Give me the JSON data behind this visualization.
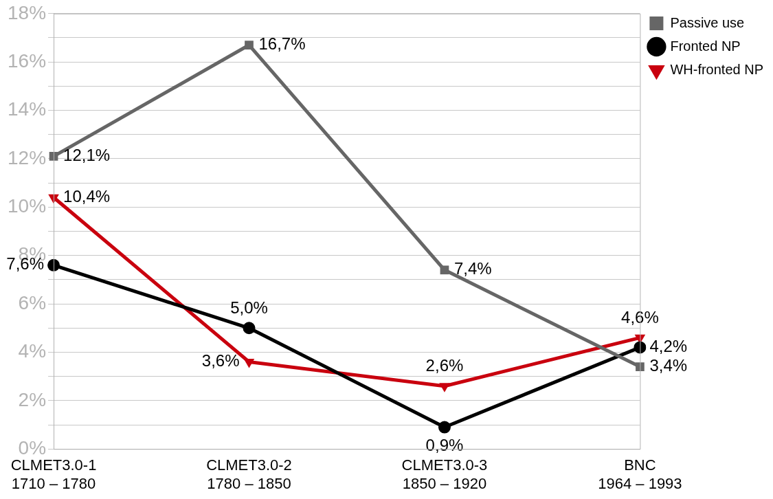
{
  "chart_data": {
    "type": "line",
    "categories": [
      "CLMET3.0-1\n1710 – 1780",
      "CLMET3.0-2\n1780 – 1850",
      "CLMET3.0-3\n1850 – 1920",
      "BNC\n1964 – 1993"
    ],
    "series": [
      {
        "name": "Passive use",
        "color": "#666666",
        "marker": "square",
        "values": [
          12.1,
          16.7,
          7.4,
          3.4
        ],
        "value_labels": [
          "12,1%",
          "16,7%",
          "7,4%",
          "3,4%"
        ]
      },
      {
        "name": "Fronted NP",
        "color": "#000000",
        "marker": "circle",
        "values": [
          7.6,
          5.0,
          0.9,
          4.2
        ],
        "value_labels": [
          "7,6%",
          "5,0%",
          "0,9%",
          "4,2%"
        ]
      },
      {
        "name": "WH-fronted NP",
        "color": "#c9000e",
        "marker": "triangle",
        "values": [
          10.4,
          3.6,
          2.6,
          4.6
        ],
        "value_labels": [
          "10,4%",
          "3,6%",
          "2,6%",
          "4,6%"
        ]
      }
    ],
    "ylim": [
      0,
      18
    ],
    "yticks": [
      {
        "value": 0,
        "label": "0%"
      },
      {
        "value": 1,
        "label": null
      },
      {
        "value": 2,
        "label": "2%"
      },
      {
        "value": 3,
        "label": null
      },
      {
        "value": 4,
        "label": "4%"
      },
      {
        "value": 5,
        "label": null
      },
      {
        "value": 6,
        "label": "6%"
      },
      {
        "value": 7,
        "label": null
      },
      {
        "value": 8,
        "label": "8%"
      },
      {
        "value": 9,
        "label": null
      },
      {
        "value": 10,
        "label": "10%"
      },
      {
        "value": 11,
        "label": null
      },
      {
        "value": 12,
        "label": "12%"
      },
      {
        "value": 13,
        "label": null
      },
      {
        "value": 14,
        "label": "14%"
      },
      {
        "value": 15,
        "label": null
      },
      {
        "value": 16,
        "label": "16%"
      },
      {
        "value": 17,
        "label": null
      },
      {
        "value": 18,
        "label": "18%"
      }
    ],
    "grid": "y",
    "legend": "top right",
    "line_style": "solid"
  }
}
